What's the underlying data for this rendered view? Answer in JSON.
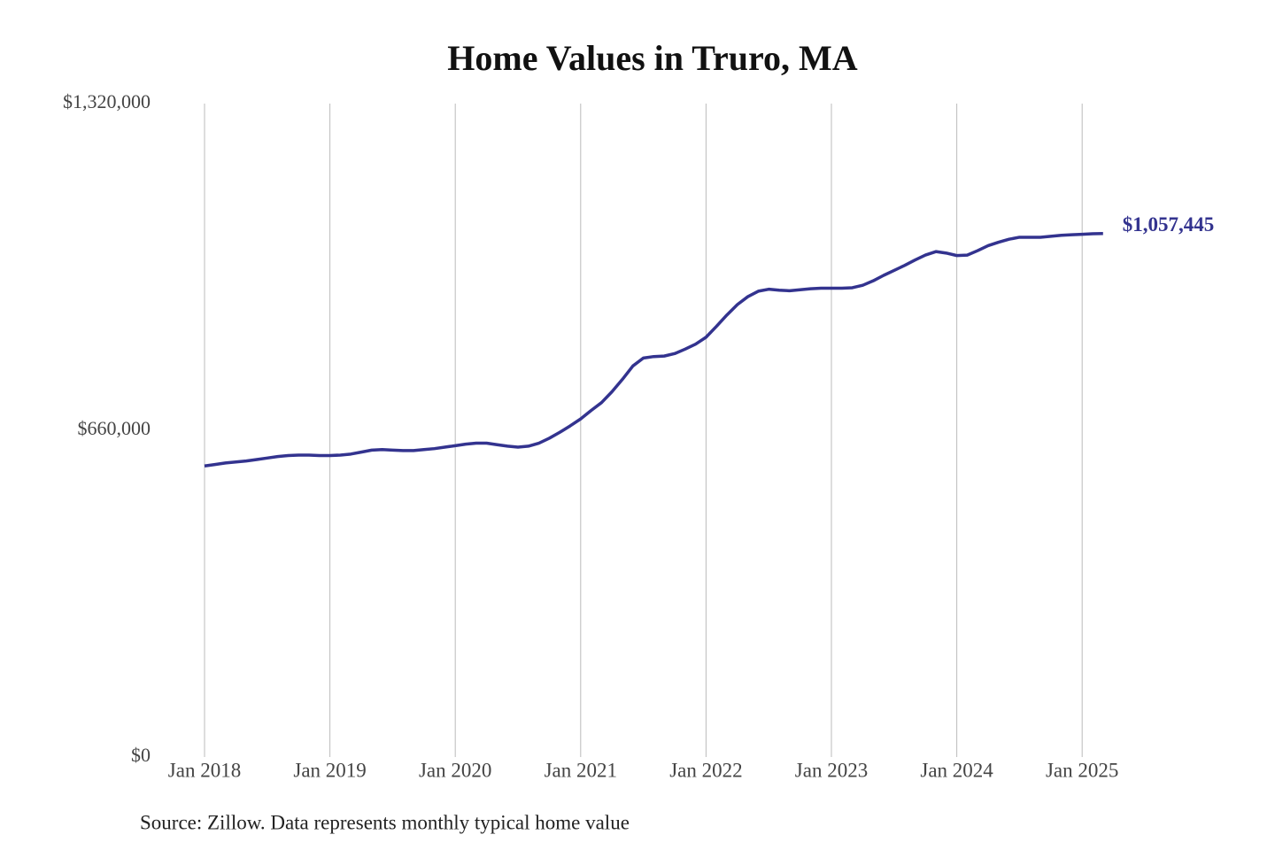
{
  "chart_data": {
    "type": "line",
    "title": "Home Values in Truro, MA",
    "source": "Source: Zillow. Data represents monthly typical home value",
    "x": [
      "2018-01",
      "2018-02",
      "2018-03",
      "2018-04",
      "2018-05",
      "2018-06",
      "2018-07",
      "2018-08",
      "2018-09",
      "2018-10",
      "2018-11",
      "2018-12",
      "2019-01",
      "2019-02",
      "2019-03",
      "2019-04",
      "2019-05",
      "2019-06",
      "2019-07",
      "2019-08",
      "2019-09",
      "2019-10",
      "2019-11",
      "2019-12",
      "2020-01",
      "2020-02",
      "2020-03",
      "2020-04",
      "2020-05",
      "2020-06",
      "2020-07",
      "2020-08",
      "2020-09",
      "2020-10",
      "2020-11",
      "2020-12",
      "2021-01",
      "2021-02",
      "2021-03",
      "2021-04",
      "2021-05",
      "2021-06",
      "2021-07",
      "2021-08",
      "2021-09",
      "2021-10",
      "2021-11",
      "2021-12",
      "2022-01",
      "2022-02",
      "2022-03",
      "2022-04",
      "2022-05",
      "2022-06",
      "2022-07",
      "2022-08",
      "2022-09",
      "2022-10",
      "2022-11",
      "2022-12",
      "2023-01",
      "2023-02",
      "2023-03",
      "2023-04",
      "2023-05",
      "2023-06",
      "2023-07",
      "2023-08",
      "2023-09",
      "2023-10",
      "2023-11",
      "2023-12",
      "2024-01",
      "2024-02",
      "2024-03",
      "2024-04",
      "2024-05",
      "2024-06",
      "2024-07",
      "2024-08",
      "2024-09",
      "2024-10",
      "2024-11",
      "2024-12",
      "2025-01",
      "2025-02",
      "2025-03"
    ],
    "series": [
      {
        "name": "Home value",
        "color": "#33338f",
        "values": [
          588000,
          591000,
          594000,
          596000,
          598000,
          601000,
          604000,
          607000,
          609000,
          610000,
          610000,
          609000,
          609000,
          610000,
          612000,
          616000,
          620000,
          621000,
          620000,
          619000,
          619000,
          621000,
          623000,
          626000,
          629000,
          632000,
          634000,
          634000,
          631000,
          628000,
          626000,
          628000,
          634000,
          644000,
          656000,
          669000,
          683000,
          700000,
          716000,
          738000,
          763000,
          790000,
          806000,
          809000,
          810000,
          815000,
          824000,
          834000,
          848000,
          870000,
          893000,
          914000,
          930000,
          941000,
          945000,
          943000,
          942000,
          944000,
          946000,
          947000,
          947000,
          947000,
          948000,
          953000,
          962000,
          973000,
          983000,
          993000,
          1004000,
          1014000,
          1021000,
          1018000,
          1013000,
          1014000,
          1023000,
          1033000,
          1040000,
          1046000,
          1050000,
          1050000,
          1050000,
          1052000,
          1054000,
          1055000,
          1056000,
          1057000,
          1057445
        ],
        "value_labels": [
          null,
          null,
          null,
          null,
          null,
          null,
          null,
          null,
          null,
          null,
          null,
          null,
          null,
          null,
          null,
          null,
          null,
          null,
          null,
          null,
          null,
          null,
          null,
          null,
          null,
          null,
          null,
          null,
          null,
          null,
          null,
          null,
          null,
          null,
          null,
          null,
          null,
          null,
          null,
          null,
          null,
          null,
          null,
          null,
          null,
          null,
          null,
          null,
          null,
          null,
          null,
          null,
          null,
          null,
          null,
          null,
          null,
          null,
          null,
          null,
          null,
          null,
          null,
          null,
          null,
          null,
          null,
          null,
          null,
          null,
          null,
          null,
          null,
          null,
          null,
          null,
          null,
          null,
          null,
          null,
          null,
          null,
          null,
          null,
          null,
          null,
          "$1,057,445"
        ]
      }
    ],
    "xlim": [
      "2018-01",
      "2025-03"
    ],
    "xticks": [
      {
        "value": "2018-01",
        "label": "Jan 2018"
      },
      {
        "value": "2019-01",
        "label": "Jan 2019"
      },
      {
        "value": "2020-01",
        "label": "Jan 2020"
      },
      {
        "value": "2021-01",
        "label": "Jan 2021"
      },
      {
        "value": "2022-01",
        "label": "Jan 2022"
      },
      {
        "value": "2023-01",
        "label": "Jan 2023"
      },
      {
        "value": "2024-01",
        "label": "Jan 2024"
      },
      {
        "value": "2025-01",
        "label": "Jan 2025"
      }
    ],
    "ylim": [
      0,
      1320000
    ],
    "yticks": [
      {
        "value": 0,
        "label": "$0"
      },
      {
        "value": 660000,
        "label": "$660,000"
      },
      {
        "value": 1320000,
        "label": "$1,320,000"
      }
    ],
    "grid": "x"
  }
}
